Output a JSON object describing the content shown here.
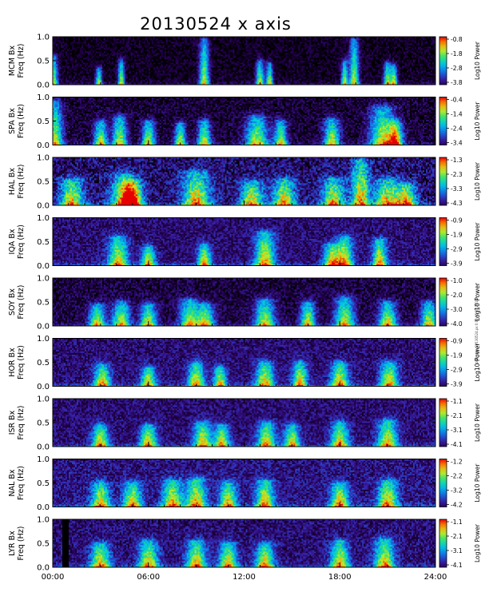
{
  "title": "20130524 x axis",
  "side_note": "plot_stim_20130524.ps   0:00   05.24.2013",
  "chart_data": [
    {
      "type": "heatmap",
      "station": "MCM",
      "ylabel_top": "MCM Bx",
      "ylabel_bottom": "Freq (Hz)",
      "colorbar_label": "Log10 Power",
      "clim": [
        -3.8,
        -0.8
      ],
      "colorbar_ticks": [
        "-0.8",
        "-1.8",
        "-2.8",
        "-3.8"
      ],
      "yticks": [
        "1.0",
        "0.5",
        "0.0"
      ],
      "ylim": [
        0,
        1.0
      ],
      "background": 0.02,
      "noise": 0.16,
      "events": [
        [
          0.05,
          0.6,
          0.25
        ],
        [
          2.9,
          0.35,
          0.2
        ],
        [
          4.3,
          0.5,
          0.2
        ],
        [
          9.5,
          0.95,
          0.3
        ],
        [
          13.0,
          0.5,
          0.25
        ],
        [
          13.6,
          0.45,
          0.2
        ],
        [
          18.3,
          0.5,
          0.2
        ],
        [
          18.9,
          0.95,
          0.3
        ],
        [
          21.0,
          0.45,
          0.25
        ],
        [
          21.4,
          0.4,
          0.2
        ]
      ]
    },
    {
      "type": "heatmap",
      "station": "SPA",
      "ylabel_top": "SPA Bx",
      "ylabel_bottom": "Freq (Hz)",
      "colorbar_label": "Log10 Power",
      "clim": [
        -3.4,
        -0.4
      ],
      "colorbar_ticks": [
        "-0.4",
        "-1.4",
        "-2.4",
        "-3.4"
      ],
      "yticks": [
        "1.0",
        "0.5",
        "0.0"
      ],
      "ylim": [
        0,
        1.0
      ],
      "background": 0.04,
      "noise": 0.2,
      "events": [
        [
          0.1,
          0.9,
          0.5
        ],
        [
          3.0,
          0.5,
          0.4
        ],
        [
          4.2,
          0.6,
          0.45
        ],
        [
          6.0,
          0.5,
          0.4
        ],
        [
          8.0,
          0.45,
          0.35
        ],
        [
          9.5,
          0.5,
          0.4
        ],
        [
          12.8,
          0.6,
          0.7
        ],
        [
          14.3,
          0.5,
          0.4
        ],
        [
          17.5,
          0.55,
          0.5
        ],
        [
          20.7,
          0.8,
          0.8
        ],
        [
          21.5,
          0.5,
          0.45
        ]
      ]
    },
    {
      "type": "heatmap",
      "station": "HAL",
      "ylabel_top": "HAL Bx",
      "ylabel_bottom": "Freq (Hz)",
      "colorbar_label": "Log10 Power",
      "clim": [
        -4.3,
        -1.3
      ],
      "colorbar_ticks": [
        "-1.3",
        "-2.3",
        "-3.3",
        "-4.3"
      ],
      "yticks": [
        "1.0",
        "0.5",
        "0.0"
      ],
      "ylim": [
        0,
        1.0
      ],
      "background": 0.1,
      "noise": 0.3,
      "events": [
        [
          1.2,
          0.55,
          0.7
        ],
        [
          4.5,
          0.65,
          0.8
        ],
        [
          5.0,
          0.5,
          0.6
        ],
        [
          9.0,
          0.7,
          0.85
        ],
        [
          12.5,
          0.5,
          0.7
        ],
        [
          14.5,
          0.55,
          0.7
        ],
        [
          17.6,
          0.55,
          0.7
        ],
        [
          19.3,
          0.95,
          0.55
        ],
        [
          21.0,
          0.55,
          0.8
        ],
        [
          22.2,
          0.45,
          0.6
        ]
      ]
    },
    {
      "type": "heatmap",
      "station": "IQA",
      "ylabel_top": "IQA Bx",
      "ylabel_bottom": "Freq (Hz)",
      "colorbar_label": "Log10 Power",
      "clim": [
        -3.9,
        -0.9
      ],
      "colorbar_ticks": [
        "-0.9",
        "-1.9",
        "-2.9",
        "-3.9"
      ],
      "yticks": [
        "1.0",
        "0.5",
        "0.0"
      ],
      "ylim": [
        0,
        1.0
      ],
      "background": 0.12,
      "noise": 0.2,
      "events": [
        [
          4.1,
          0.6,
          0.6
        ],
        [
          6.0,
          0.4,
          0.4
        ],
        [
          9.5,
          0.45,
          0.4
        ],
        [
          13.3,
          0.7,
          0.6
        ],
        [
          17.5,
          0.45,
          0.5
        ],
        [
          18.3,
          0.6,
          0.5
        ],
        [
          20.5,
          0.55,
          0.45
        ]
      ]
    },
    {
      "type": "heatmap",
      "station": "SOY",
      "ylabel_top": "SOY Bx",
      "ylabel_bottom": "Freq (Hz)",
      "colorbar_label": "Log10 Power",
      "clim": [
        -4.0,
        -1.0
      ],
      "colorbar_ticks": [
        "-1.0",
        "-2.0",
        "-3.0",
        "-4.0"
      ],
      "yticks": [
        "1.0",
        "0.5",
        "0.0"
      ],
      "ylim": [
        0,
        1.0
      ],
      "background": 0.06,
      "noise": 0.2,
      "events": [
        [
          2.8,
          0.45,
          0.5
        ],
        [
          4.3,
          0.5,
          0.55
        ],
        [
          6.0,
          0.45,
          0.5
        ],
        [
          8.6,
          0.55,
          0.6
        ],
        [
          9.6,
          0.45,
          0.5
        ],
        [
          13.3,
          0.55,
          0.6
        ],
        [
          16.0,
          0.5,
          0.45
        ],
        [
          18.3,
          0.6,
          0.6
        ],
        [
          21.0,
          0.5,
          0.55
        ],
        [
          23.6,
          0.5,
          0.5
        ]
      ]
    },
    {
      "type": "heatmap",
      "station": "HOR",
      "ylabel_top": "HOR Bx",
      "ylabel_bottom": "Freq (Hz)",
      "colorbar_label": "Log10 Power",
      "clim": [
        -3.9,
        -0.9
      ],
      "colorbar_ticks": [
        "-0.9",
        "-1.9",
        "-2.9",
        "-3.9"
      ],
      "yticks": [
        "1.0",
        "0.5",
        "0.0"
      ],
      "ylim": [
        0,
        1.0
      ],
      "background": 0.12,
      "noise": 0.2,
      "events": [
        [
          3.1,
          0.45,
          0.5
        ],
        [
          6.0,
          0.4,
          0.45
        ],
        [
          9.0,
          0.5,
          0.5
        ],
        [
          10.5,
          0.4,
          0.4
        ],
        [
          13.3,
          0.5,
          0.55
        ],
        [
          15.5,
          0.5,
          0.45
        ],
        [
          18.0,
          0.5,
          0.55
        ],
        [
          21.1,
          0.5,
          0.55
        ]
      ]
    },
    {
      "type": "heatmap",
      "station": "ISR",
      "ylabel_top": "ISR Bx",
      "ylabel_bottom": "Freq (Hz)",
      "colorbar_label": "Log10 Power",
      "clim": [
        -4.1,
        -1.1
      ],
      "colorbar_ticks": [
        "-1.1",
        "-2.1",
        "-3.1",
        "-4.1"
      ],
      "yticks": [
        "1.0",
        "0.5",
        "0.0"
      ],
      "ylim": [
        0,
        1.0
      ],
      "background": 0.12,
      "noise": 0.2,
      "events": [
        [
          3.0,
          0.45,
          0.5
        ],
        [
          6.0,
          0.45,
          0.5
        ],
        [
          9.4,
          0.5,
          0.55
        ],
        [
          10.6,
          0.45,
          0.45
        ],
        [
          13.4,
          0.5,
          0.55
        ],
        [
          15.0,
          0.45,
          0.45
        ],
        [
          18.0,
          0.5,
          0.55
        ],
        [
          21.0,
          0.55,
          0.6
        ]
      ]
    },
    {
      "type": "heatmap",
      "station": "NAL",
      "ylabel_top": "NAL Bx",
      "ylabel_bottom": "Freq (Hz)",
      "colorbar_label": "Log10 Power",
      "clim": [
        -4.2,
        -1.2
      ],
      "colorbar_ticks": [
        "-1.2",
        "-2.2",
        "-3.2",
        "-4.2"
      ],
      "yticks": [
        "1.0",
        "0.5",
        "0.0"
      ],
      "ylim": [
        0,
        1.0
      ],
      "background": 0.14,
      "noise": 0.22,
      "events": [
        [
          3.0,
          0.5,
          0.55
        ],
        [
          5.0,
          0.5,
          0.55
        ],
        [
          7.5,
          0.55,
          0.6
        ],
        [
          9.0,
          0.6,
          0.6
        ],
        [
          11.0,
          0.5,
          0.5
        ],
        [
          13.3,
          0.55,
          0.55
        ],
        [
          18.0,
          0.5,
          0.55
        ],
        [
          21.0,
          0.55,
          0.6
        ]
      ]
    },
    {
      "type": "heatmap",
      "station": "LYR",
      "ylabel_top": "LYR Bx",
      "ylabel_bottom": "Freq (Hz)",
      "colorbar_label": "Log10 Power",
      "clim": [
        -4.1,
        -1.1
      ],
      "colorbar_ticks": [
        "-1.1",
        "-2.1",
        "-3.1",
        "-4.1"
      ],
      "yticks": [
        "1.0",
        "0.5",
        "0.0"
      ],
      "ylim": [
        0,
        1.0
      ],
      "background": 0.12,
      "noise": 0.22,
      "gap": [
        0.55,
        1.0
      ],
      "events": [
        [
          3.0,
          0.5,
          0.6
        ],
        [
          6.0,
          0.55,
          0.6
        ],
        [
          9.0,
          0.55,
          0.6
        ],
        [
          11.0,
          0.5,
          0.55
        ],
        [
          13.3,
          0.5,
          0.55
        ],
        [
          18.0,
          0.55,
          0.55
        ],
        [
          20.8,
          0.6,
          0.6
        ]
      ]
    }
  ],
  "xaxis": {
    "ticks": [
      "00:00",
      "06:00",
      "12:00",
      "18:00",
      "24:00"
    ],
    "xlim": [
      0,
      24
    ]
  }
}
